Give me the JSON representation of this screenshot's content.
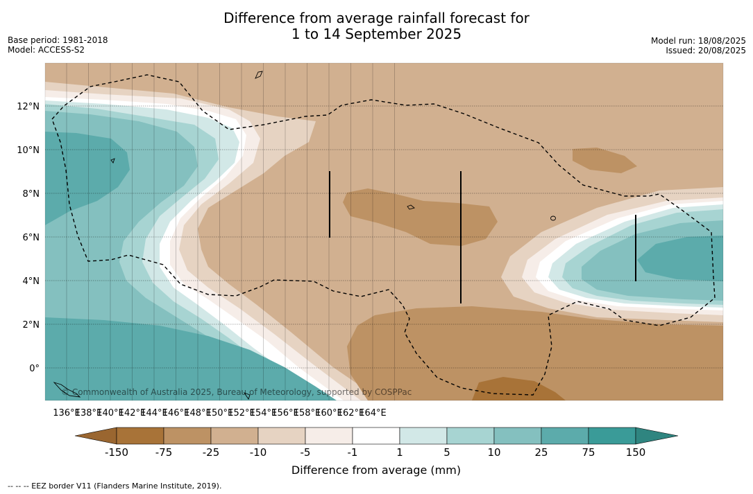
{
  "header": {
    "title_line1": "Difference from average rainfall forecast for",
    "title_line2": "1 to 14 September 2025",
    "base_period": "Base period: 1981-2018",
    "model": "Model: ACCESS-S2",
    "model_run": "Model run: 18/08/2025",
    "issued": "Issued: 20/08/2025"
  },
  "map": {
    "lon_ticks": [
      "136°E",
      "138°E",
      "140°E",
      "142°E",
      "144°E",
      "146°E",
      "148°E",
      "150°E",
      "152°E",
      "154°E",
      "156°E",
      "158°E",
      "160°E",
      "162°E",
      "164°E"
    ],
    "lat_ticks": [
      "12°N",
      "10°N",
      "8°N",
      "6°N",
      "4°N",
      "2°N",
      "0°"
    ],
    "copyright": "© Commonwealth of Australia 2025, Bureau of Meteorology, supported by COSPPac"
  },
  "legend": {
    "title": "Difference from average (mm)",
    "tick_labels": [
      "-150",
      "-75",
      "-25",
      "-10",
      "-5",
      "-1",
      "1",
      "5",
      "10",
      "25",
      "75",
      "150"
    ],
    "colors": [
      "#a87338",
      "#bd9264",
      "#d1b090",
      "#e6d3c2",
      "#f6ede8",
      "#ffffff",
      "#d2e8e7",
      "#a7d4d2",
      "#84c0bf",
      "#5cabab",
      "#3a9b98"
    ],
    "under_color": "#9a6630",
    "over_color": "#2f8580"
  },
  "footer": {
    "eez_note": "--  --  -- EEZ border V11 (Flanders Marine Institute, 2019)."
  }
}
